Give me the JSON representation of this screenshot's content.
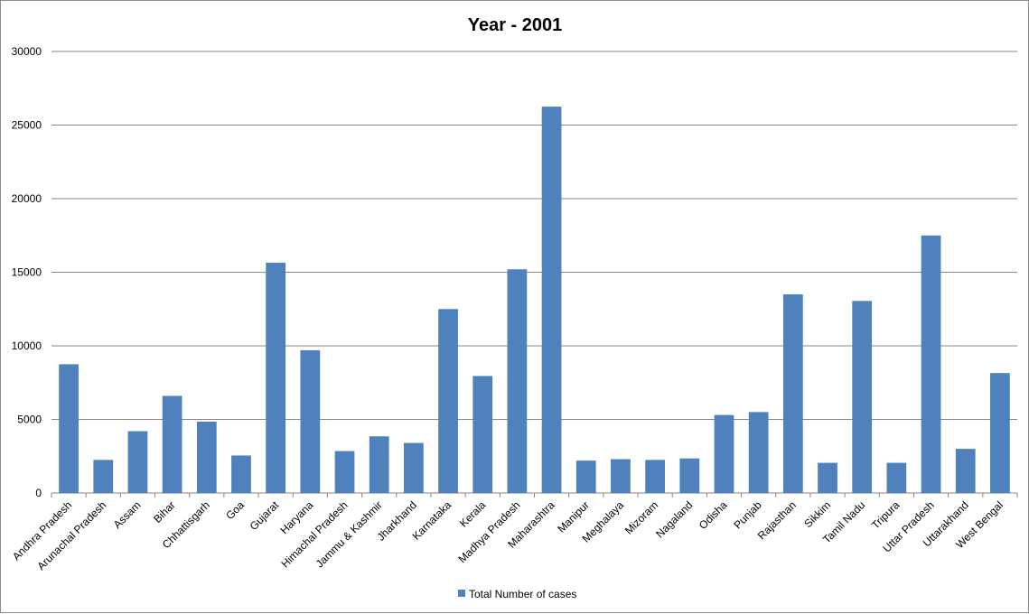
{
  "chart_data": {
    "type": "bar",
    "title": "Year - 2001",
    "xlabel": "",
    "ylabel": "",
    "ylim": [
      0,
      30000
    ],
    "yticks": [
      0,
      5000,
      10000,
      15000,
      20000,
      25000,
      30000
    ],
    "grid": true,
    "legend_position": "bottom",
    "categories": [
      "Andhra Pradesh",
      "Arunachal Pradesh",
      "Assam",
      "Bihar",
      "Chhattisgarh",
      "Goa",
      "Gujarat",
      "Haryana",
      "Himachal Pradesh",
      "Jammu & Kashmir",
      "Jharkhand",
      "Karnataka",
      "Kerala",
      "Madhya Pradesh",
      "Maharashtra",
      "Manipur",
      "Meghalaya",
      "Mizoram",
      "Nagaland",
      "Odisha",
      "Punjab",
      "Rajasthan",
      "Sikkim",
      "Tamil Nadu",
      "Tripura",
      "Uttar Pradesh",
      "Uttarakhand",
      "West Bengal"
    ],
    "series": [
      {
        "name": "Total Number of cases",
        "color": "#4f81bd",
        "values": [
          8750,
          2250,
          4200,
          6600,
          4850,
          2550,
          15650,
          9700,
          2850,
          3850,
          3400,
          12500,
          7950,
          15200,
          26250,
          2200,
          2300,
          2250,
          2350,
          5300,
          5500,
          13500,
          2050,
          13050,
          2050,
          17500,
          3000,
          8150
        ]
      }
    ]
  }
}
